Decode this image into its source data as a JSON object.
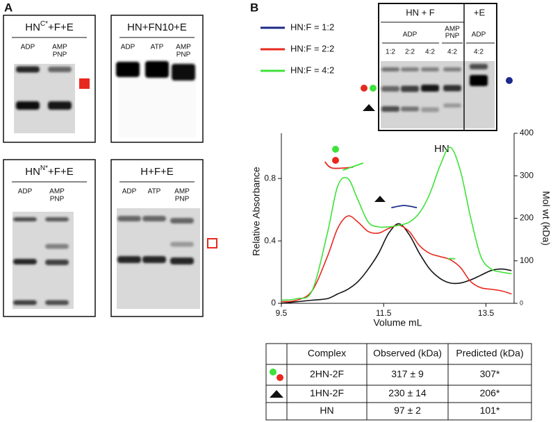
{
  "panels": {
    "a": "A",
    "b": "B"
  },
  "gels": [
    {
      "title": {
        "main": "HN",
        "sup": "C*",
        "rest": "+F+E"
      },
      "lanes": [
        [
          "ADP"
        ],
        [
          "AMP",
          "PNP"
        ]
      ]
    },
    {
      "title": {
        "main": "HN+FN10+E"
      },
      "lanes": [
        [
          "ADP"
        ],
        [
          "ATP"
        ],
        [
          "AMP",
          "PNP"
        ]
      ]
    },
    {
      "title": {
        "main": "HN",
        "sup": "N*",
        "rest": "+F+E"
      },
      "lanes": [
        [
          "ADP"
        ],
        [
          "AMP",
          "PNP"
        ]
      ]
    },
    {
      "title": {
        "main": "H+F+E"
      },
      "lanes": [
        [
          "ADP"
        ],
        [
          "ATP"
        ],
        [
          "AMP",
          "PNP"
        ]
      ]
    }
  ],
  "gel_b": {
    "groups": [
      "HN + F",
      "+E"
    ],
    "conditions": [
      [
        "ADP"
      ],
      [
        "AMP",
        "PNP"
      ],
      [
        "ADP"
      ]
    ],
    "lanes": [
      "1:2",
      "2:2",
      "4:2",
      "4:2",
      "4:2"
    ]
  },
  "legend": [
    {
      "label": "HN:F = 1:2",
      "color": "#1c2a8c"
    },
    {
      "label": "HN:F = 2:2",
      "color": "#e8281e"
    },
    {
      "label": "HN:F = 4:2",
      "color": "#3ee23a"
    }
  ],
  "chart_data": {
    "type": "line",
    "x_label": "Volume mL",
    "y_label": "Relative Absorbance",
    "y2_label": "Mol wt (kDa)",
    "annotations": [
      "HN"
    ],
    "xlim": [
      9.5,
      14.05
    ],
    "xticks": [
      9.5,
      11.5,
      13.5
    ],
    "ylim": [
      0,
      1.09
    ],
    "yticks": [
      0,
      0.4,
      0.8
    ],
    "y2lim": [
      0,
      400
    ],
    "y2ticks": [
      0,
      100,
      200,
      300,
      400
    ],
    "x": [
      9.5,
      9.8,
      10.1,
      10.4,
      10.6,
      10.8,
      11.0,
      11.2,
      11.4,
      11.6,
      11.8,
      12.0,
      12.2,
      12.4,
      12.6,
      12.8,
      13.0,
      13.2,
      13.4,
      13.6,
      13.8,
      14.0
    ],
    "series": [
      {
        "color": "#111111",
        "values": [
          0,
          0.01,
          0.02,
          0.03,
          0.06,
          0.09,
          0.14,
          0.22,
          0.32,
          0.45,
          0.51,
          0.44,
          0.32,
          0.22,
          0.16,
          0.13,
          0.13,
          0.15,
          0.18,
          0.21,
          0.22,
          0.21
        ]
      },
      {
        "color": "#e8281e",
        "values": [
          0.01,
          0.02,
          0.08,
          0.3,
          0.48,
          0.56,
          0.52,
          0.46,
          0.45,
          0.48,
          0.5,
          0.46,
          0.37,
          0.32,
          0.3,
          0.28,
          0.23,
          0.14,
          0.1,
          0.09,
          0.08,
          0.06
        ]
      },
      {
        "color": "#3ee23a",
        "values": [
          0.02,
          0.03,
          0.08,
          0.45,
          0.75,
          0.8,
          0.66,
          0.52,
          0.49,
          0.49,
          0.5,
          0.52,
          0.58,
          0.7,
          0.88,
          1.0,
          0.85,
          0.55,
          0.3,
          0.22,
          0.2,
          0.19
        ]
      },
      {
        "color": "#e8281e",
        "axis": "y2",
        "x": [
          10.35,
          10.5,
          10.9
        ],
        "values": [
          333,
          318,
          320
        ]
      },
      {
        "color": "#3ee23a",
        "axis": "y2",
        "x": [
          10.7,
          11.1
        ],
        "values": [
          313,
          330
        ]
      },
      {
        "color": "#1c2a8c",
        "axis": "y2",
        "x": [
          11.65,
          11.9,
          12.15
        ],
        "values": [
          225,
          230,
          225
        ]
      },
      {
        "color": "#3ee23a",
        "axis": "y2",
        "x": [
          12.75,
          12.9
        ],
        "values": [
          105,
          105
        ]
      }
    ]
  },
  "table": {
    "header": [
      "Complex",
      "Observed (kDa)",
      "Predicted (kDa)"
    ],
    "rows": [
      [
        "2HN-2F",
        "317 ± 9",
        "307*"
      ],
      [
        "1HN-2F",
        "230 ± 14",
        "206*"
      ],
      [
        "HN",
        "97 ± 2",
        "101*"
      ]
    ]
  }
}
